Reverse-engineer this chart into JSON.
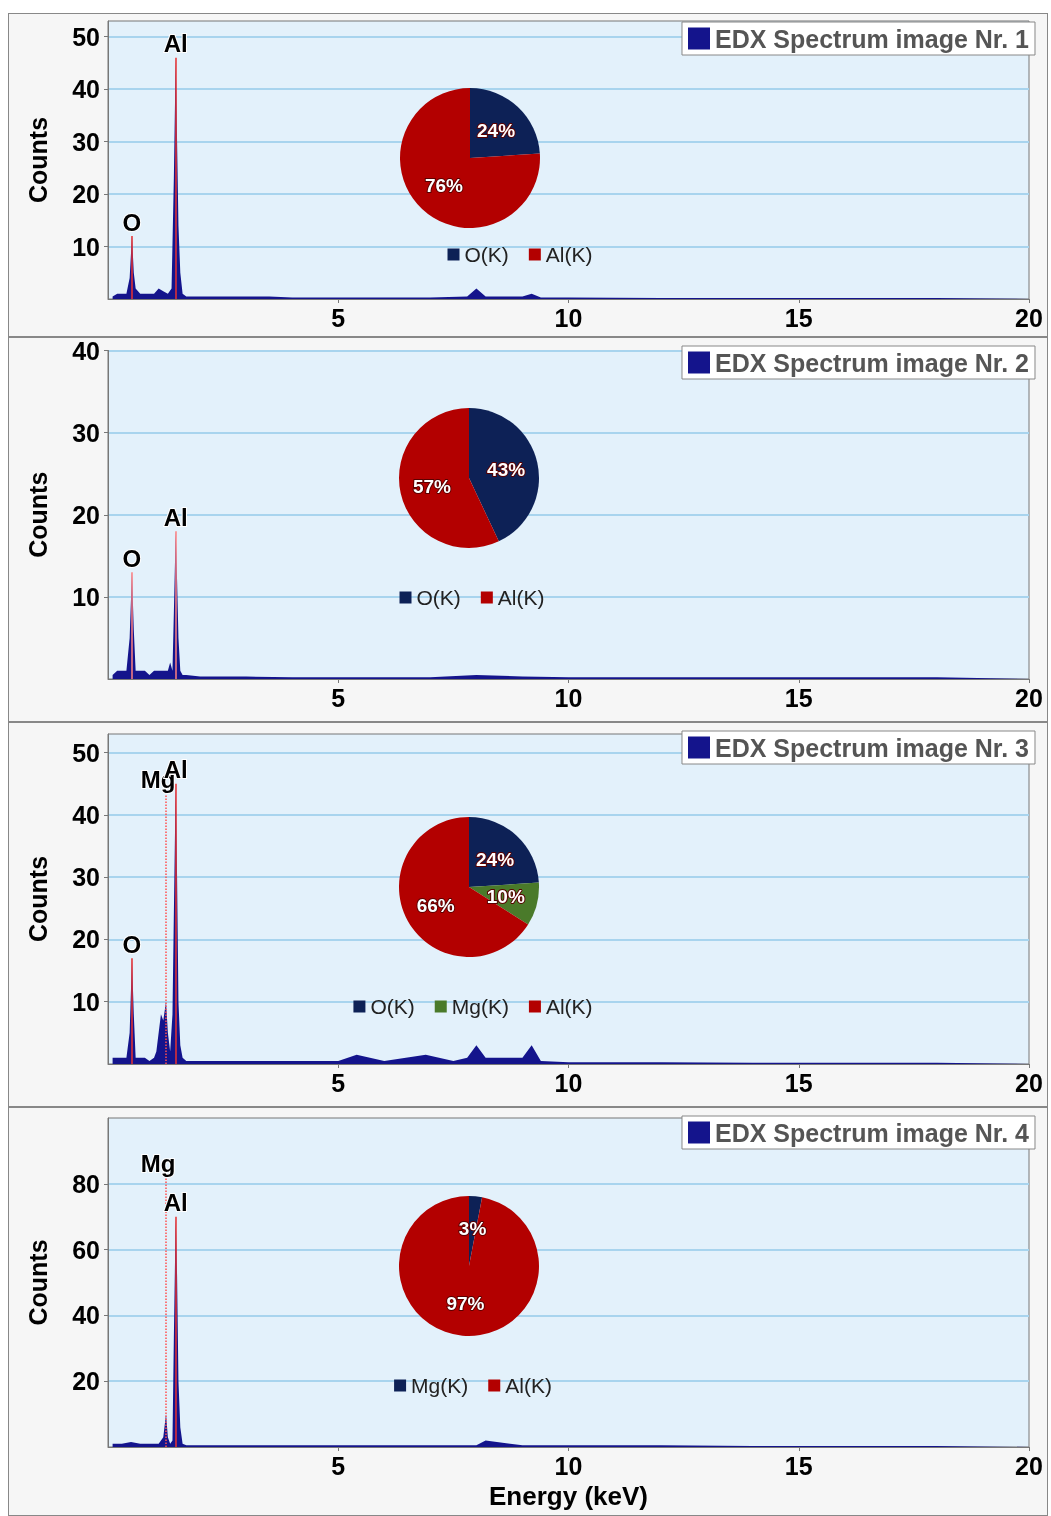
{
  "chart_data": [
    {
      "type": "area",
      "ylabel": "Counts",
      "xlim": [
        0,
        20
      ],
      "ylim": [
        0,
        53
      ],
      "xticks": [
        5,
        10,
        15,
        20
      ],
      "yticks": [
        10,
        20,
        30,
        40,
        50
      ],
      "grid": "y",
      "legend": "top right",
      "series": [
        {
          "name": "EDX Spectrum image Nr. 1",
          "color": "#14148c",
          "x": [
            0.1,
            0.2,
            0.3,
            0.4,
            0.47,
            0.52,
            0.56,
            0.6,
            0.7,
            0.8,
            0.9,
            1.0,
            1.1,
            1.2,
            1.3,
            1.38,
            1.43,
            1.47,
            1.5,
            1.53,
            1.57,
            1.62,
            1.7,
            2.0,
            2.5,
            3.0,
            3.5,
            4.0,
            5.0,
            6.0,
            7.0,
            7.8,
            8.0,
            8.2,
            9.0,
            9.2,
            9.4,
            10.0,
            12.0,
            14.0,
            16.0,
            18.0,
            20.0
          ],
          "values": [
            0.5,
            1,
            1,
            1,
            4,
            12,
            5,
            2,
            1,
            1,
            1,
            1,
            2,
            1.5,
            1,
            2,
            23,
            46,
            30,
            14,
            5,
            1,
            0.5,
            0.5,
            0.5,
            0.5,
            0.5,
            0.3,
            0.3,
            0.3,
            0.3,
            0.5,
            2,
            0.5,
            0.5,
            1,
            0.3,
            0.3,
            0.2,
            0.2,
            0.2,
            0.2,
            0
          ]
        }
      ],
      "ref_lines": [
        {
          "axis": "x",
          "value": 0.52,
          "label": "O",
          "color": "#e83030",
          "line_style": "solid"
        },
        {
          "axis": "x",
          "value": 1.47,
          "label": "Al",
          "color": "#e83030",
          "line_style": "solid"
        }
      ]
    },
    {
      "type": "pie",
      "categories": [
        "O(K)",
        "Al(K)"
      ],
      "values": [
        24,
        76
      ],
      "value_labels": [
        "24%",
        "76%"
      ],
      "colors": [
        "#0d2156",
        "#b30000"
      ],
      "legend": "bottom"
    },
    {
      "type": "area",
      "ylabel": "Counts",
      "xlim": [
        0,
        20
      ],
      "ylim": [
        0,
        40
      ],
      "xticks": [
        5,
        10,
        15,
        20
      ],
      "yticks": [
        10,
        20,
        30,
        40
      ],
      "grid": "y",
      "legend": "top right",
      "series": [
        {
          "name": "EDX Spectrum image Nr. 2",
          "color": "#14148c",
          "x": [
            0.1,
            0.2,
            0.3,
            0.4,
            0.47,
            0.52,
            0.56,
            0.6,
            0.7,
            0.8,
            0.9,
            1.0,
            1.1,
            1.2,
            1.3,
            1.35,
            1.4,
            1.43,
            1.47,
            1.5,
            1.53,
            1.57,
            1.62,
            1.7,
            2.0,
            2.5,
            3.0,
            4.0,
            5.0,
            6.0,
            7.0,
            8.0,
            9.0,
            10.0,
            12.0,
            14.0,
            16.0,
            18.0,
            20.0
          ],
          "values": [
            0.5,
            1,
            1,
            1,
            5,
            13,
            6,
            1,
            1,
            1,
            0.5,
            1,
            1,
            1,
            1,
            2,
            1,
            8,
            18,
            12,
            5,
            1,
            0.5,
            0.5,
            0.3,
            0.3,
            0.3,
            0.2,
            0.2,
            0.2,
            0.2,
            0.5,
            0.3,
            0.2,
            0.2,
            0.2,
            0.2,
            0.2,
            0
          ]
        }
      ],
      "ref_lines": [
        {
          "axis": "x",
          "value": 0.52,
          "label": "O",
          "color": "#ff8080",
          "line_style": "solid"
        },
        {
          "axis": "x",
          "value": 1.47,
          "label": "Al",
          "color": "#ff8080",
          "line_style": "solid"
        }
      ]
    },
    {
      "type": "pie",
      "categories": [
        "O(K)",
        "Al(K)"
      ],
      "values": [
        43,
        57
      ],
      "value_labels": [
        "43%",
        "57%"
      ],
      "colors": [
        "#0d2156",
        "#b30000"
      ],
      "legend": "bottom"
    },
    {
      "type": "area",
      "ylabel": "Counts",
      "xlim": [
        0,
        20
      ],
      "ylim": [
        0,
        53
      ],
      "xticks": [
        5,
        10,
        15,
        20
      ],
      "yticks": [
        10,
        20,
        30,
        40,
        50
      ],
      "grid": "y",
      "legend": "top right",
      "series": [
        {
          "name": "EDX Spectrum image Nr. 3",
          "color": "#14148c",
          "x": [
            0.1,
            0.2,
            0.3,
            0.4,
            0.47,
            0.52,
            0.56,
            0.6,
            0.7,
            0.8,
            0.9,
            1.0,
            1.05,
            1.1,
            1.15,
            1.2,
            1.26,
            1.3,
            1.35,
            1.4,
            1.43,
            1.47,
            1.5,
            1.53,
            1.57,
            1.62,
            1.7,
            2.0,
            3.0,
            4.0,
            5.0,
            5.4,
            6.0,
            6.9,
            7.5,
            7.8,
            8.0,
            8.2,
            9.0,
            9.2,
            9.4,
            10.0,
            12.0,
            14.0,
            16.0,
            18.0,
            20.0
          ],
          "values": [
            1,
            1,
            1,
            1,
            5,
            17,
            8,
            1,
            1,
            1,
            0.5,
            1,
            2,
            5,
            8,
            7,
            10,
            5,
            2,
            8,
            24,
            45,
            30,
            10,
            3,
            1,
            0.5,
            0.5,
            0.5,
            0.5,
            0.5,
            1.5,
            0.5,
            1.5,
            0.5,
            1,
            3,
            1,
            1,
            3,
            0.5,
            0.3,
            0.3,
            0.2,
            0.2,
            0.2,
            0
          ]
        }
      ],
      "ref_lines": [
        {
          "axis": "x",
          "value": 0.52,
          "label": "O",
          "color": "#e83030",
          "line_style": "solid"
        },
        {
          "axis": "x",
          "value": 1.26,
          "label": "Mg",
          "color": "#ff5050",
          "line_style": "dotted"
        },
        {
          "axis": "x",
          "value": 1.47,
          "label": "Al",
          "color": "#e83030",
          "line_style": "solid"
        }
      ]
    },
    {
      "type": "pie",
      "categories": [
        "O(K)",
        "Mg(K)",
        "Al(K)"
      ],
      "values": [
        24,
        10,
        66
      ],
      "value_labels": [
        "24%",
        "10%",
        "66%"
      ],
      "colors": [
        "#0d2156",
        "#4a7a2a",
        "#b30000"
      ],
      "legend": "bottom"
    },
    {
      "type": "area",
      "ylabel": "Counts",
      "xlabel": "Energy (keV)",
      "xlim": [
        0,
        20
      ],
      "ylim": [
        0,
        100
      ],
      "xticks": [
        5,
        10,
        15,
        20
      ],
      "yticks": [
        20,
        40,
        60,
        80
      ],
      "grid": "y",
      "legend": "top right",
      "series": [
        {
          "name": "EDX Spectrum image Nr. 4",
          "color": "#14148c",
          "x": [
            0.1,
            0.3,
            0.5,
            0.7,
            0.9,
            1.1,
            1.2,
            1.26,
            1.3,
            1.35,
            1.4,
            1.43,
            1.47,
            1.5,
            1.53,
            1.57,
            1.62,
            1.7,
            2.0,
            3.0,
            4.0,
            5.0,
            6.0,
            7.0,
            8.0,
            8.2,
            9.0,
            10.0,
            12.0,
            14.0,
            16.0,
            18.0,
            20.0
          ],
          "values": [
            1,
            1,
            1.5,
            1,
            1,
            1,
            3,
            10,
            3,
            1,
            2,
            33,
            70,
            52,
            20,
            6,
            1,
            0.5,
            0.5,
            0.5,
            0.5,
            0.5,
            0.5,
            0.5,
            0.5,
            2,
            0.5,
            0.5,
            0.5,
            0.3,
            0.3,
            0.3,
            0
          ]
        }
      ],
      "ref_lines": [
        {
          "axis": "x",
          "value": 1.26,
          "label": "Mg",
          "color": "#ff5050",
          "line_style": "dotted"
        },
        {
          "axis": "x",
          "value": 1.47,
          "label": "Al",
          "color": "#e83030",
          "line_style": "solid"
        }
      ]
    },
    {
      "type": "pie",
      "categories": [
        "Mg(K)",
        "Al(K)"
      ],
      "values": [
        3,
        97
      ],
      "value_labels": [
        "3%",
        "97%"
      ],
      "colors": [
        "#0d2156",
        "#b30000"
      ],
      "legend": "bottom"
    }
  ]
}
